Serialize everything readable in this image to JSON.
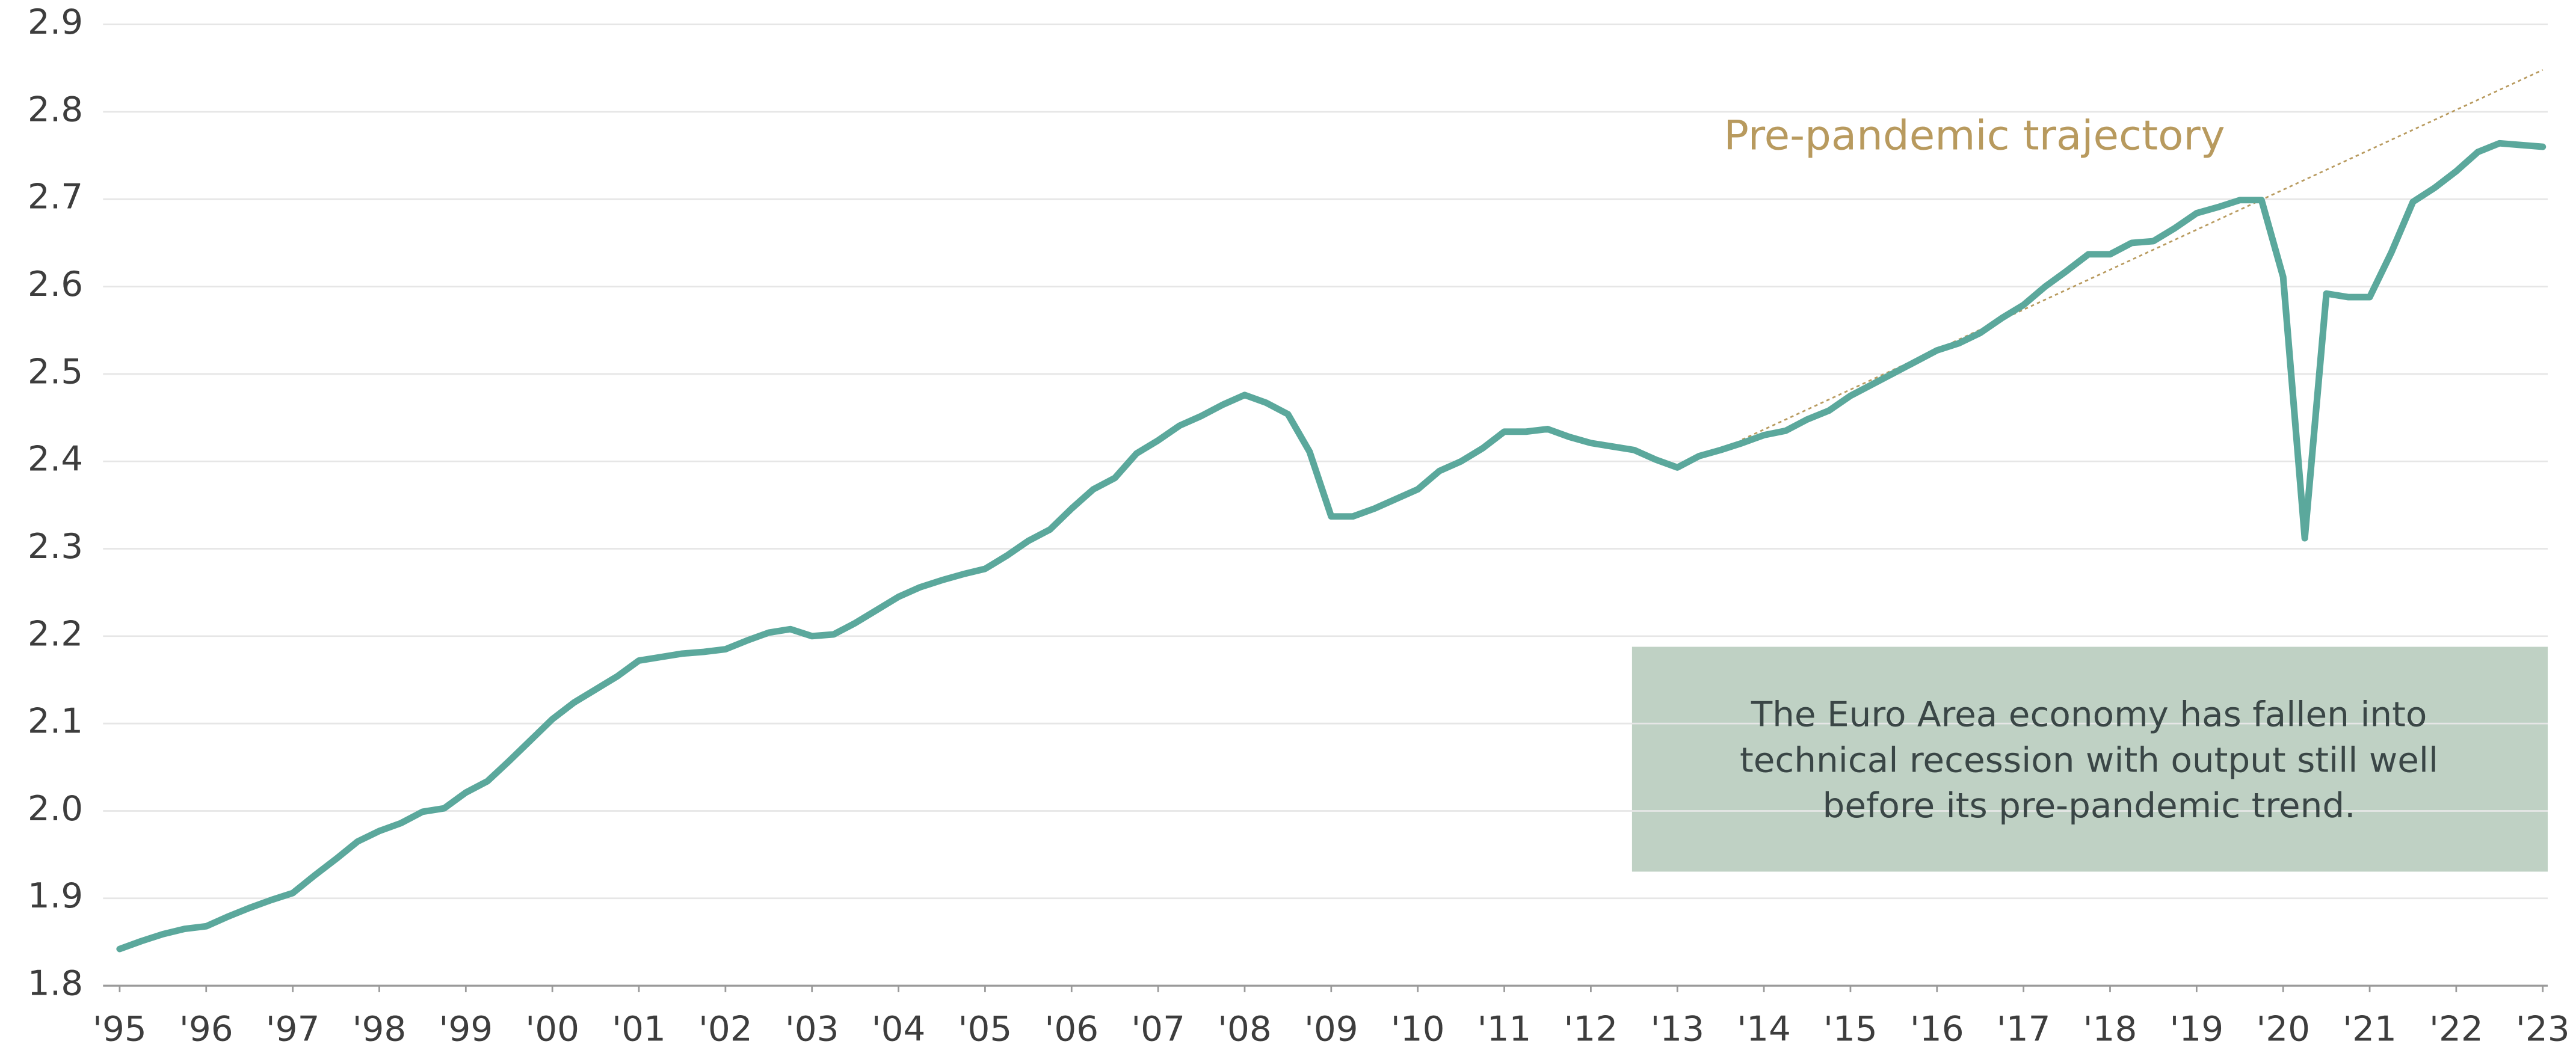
{
  "chart_data": {
    "type": "line",
    "x": [
      1995,
      1995.25,
      1995.5,
      1995.75,
      1996,
      1996.25,
      1996.5,
      1996.75,
      1997,
      1997.25,
      1997.5,
      1997.75,
      1998,
      1998.25,
      1998.5,
      1998.75,
      1999,
      1999.25,
      1999.5,
      1999.75,
      2000,
      2000.25,
      2000.5,
      2000.75,
      2001,
      2001.25,
      2001.5,
      2001.75,
      2002,
      2002.25,
      2002.5,
      2002.75,
      2003,
      2003.25,
      2003.5,
      2003.75,
      2004,
      2004.25,
      2004.5,
      2004.75,
      2005,
      2005.25,
      2005.5,
      2005.75,
      2006,
      2006.25,
      2006.5,
      2006.75,
      2007,
      2007.25,
      2007.5,
      2007.75,
      2008,
      2008.25,
      2008.5,
      2008.75,
      2009,
      2009.25,
      2009.5,
      2009.75,
      2010,
      2010.25,
      2010.5,
      2010.75,
      2011,
      2011.25,
      2011.5,
      2011.75,
      2012,
      2012.25,
      2012.5,
      2012.75,
      2013,
      2013.25,
      2013.5,
      2013.75,
      2014,
      2014.25,
      2014.5,
      2014.75,
      2015,
      2015.25,
      2015.5,
      2015.75,
      2016,
      2016.25,
      2016.5,
      2016.75,
      2017,
      2017.25,
      2017.5,
      2017.75,
      2018,
      2018.25,
      2018.5,
      2018.75,
      2019,
      2019.25,
      2019.5,
      2019.75,
      2020,
      2020.25,
      2020.5,
      2020.75,
      2021,
      2021.25,
      2021.5,
      2021.75,
      2022,
      2022.25,
      2022.5,
      2022.75,
      2023
    ],
    "series": [
      {
        "color": "#5ba89c",
        "values": [
          1.842,
          1.851,
          1.859,
          1.865,
          1.868,
          1.879,
          1.889,
          1.898,
          1.906,
          1.926,
          1.945,
          1.965,
          1.977,
          1.986,
          1.999,
          2.003,
          2.021,
          2.034,
          2.057,
          2.081,
          2.105,
          2.124,
          2.139,
          2.154,
          2.172,
          2.176,
          2.18,
          2.182,
          2.185,
          2.195,
          2.204,
          2.208,
          2.2,
          2.202,
          2.215,
          2.23,
          2.245,
          2.256,
          2.264,
          2.271,
          2.277,
          2.292,
          2.309,
          2.322,
          2.346,
          2.368,
          2.381,
          2.409,
          2.424,
          2.441,
          2.452,
          2.465,
          2.476,
          2.467,
          2.454,
          2.411,
          2.337,
          2.337,
          2.346,
          2.357,
          2.368,
          2.389,
          2.4,
          2.415,
          2.434,
          2.434,
          2.437,
          2.428,
          2.421,
          2.417,
          2.413,
          2.402,
          2.393,
          2.406,
          2.413,
          2.421,
          2.43,
          2.435,
          2.448,
          2.458,
          2.475,
          2.488,
          2.501,
          2.514,
          2.527,
          2.535,
          2.547,
          2.564,
          2.579,
          2.6,
          2.618,
          2.637,
          2.637,
          2.65,
          2.652,
          2.667,
          2.684,
          2.691,
          2.699,
          2.699,
          2.611,
          2.312,
          2.592,
          2.588,
          2.588,
          2.639,
          2.697,
          2.713,
          2.732,
          2.754,
          2.764,
          2.762,
          2.76
        ]
      }
    ],
    "trend": {
      "name": "Pre-pandemic trajectory",
      "color": "#b89a5e",
      "x": [
        2013.75,
        2023
      ],
      "values": [
        2.425,
        2.848
      ]
    },
    "annotation": [
      "The Euro Area economy has fallen into",
      "technical recession with output still well",
      "before its pre-pandemic trend."
    ],
    "xlim": [
      1995,
      2023
    ],
    "xticks": [
      {
        "value": 1995,
        "label": "'95"
      },
      {
        "value": 1996,
        "label": "'96"
      },
      {
        "value": 1997,
        "label": "'97"
      },
      {
        "value": 1998,
        "label": "'98"
      },
      {
        "value": 1999,
        "label": "'99"
      },
      {
        "value": 2000,
        "label": "'00"
      },
      {
        "value": 2001,
        "label": "'01"
      },
      {
        "value": 2002,
        "label": "'02"
      },
      {
        "value": 2003,
        "label": "'03"
      },
      {
        "value": 2004,
        "label": "'04"
      },
      {
        "value": 2005,
        "label": "'05"
      },
      {
        "value": 2006,
        "label": "'06"
      },
      {
        "value": 2007,
        "label": "'07"
      },
      {
        "value": 2008,
        "label": "'08"
      },
      {
        "value": 2009,
        "label": "'09"
      },
      {
        "value": 2010,
        "label": "'10"
      },
      {
        "value": 2011,
        "label": "'11"
      },
      {
        "value": 2012,
        "label": "'12"
      },
      {
        "value": 2013,
        "label": "'13"
      },
      {
        "value": 2014,
        "label": "'14"
      },
      {
        "value": 2015,
        "label": "'15"
      },
      {
        "value": 2016,
        "label": "'16"
      },
      {
        "value": 2017,
        "label": "'17"
      },
      {
        "value": 2018,
        "label": "'18"
      },
      {
        "value": 2019,
        "label": "'19"
      },
      {
        "value": 2020,
        "label": "'20"
      },
      {
        "value": 2021,
        "label": "'21"
      },
      {
        "value": 2022,
        "label": "'22"
      },
      {
        "value": 2023,
        "label": "'23"
      }
    ],
    "ylim": [
      1.8,
      2.9
    ],
    "yticks": [
      1.8,
      1.9,
      {
        "value": 2,
        "label": "2.0"
      },
      2.1,
      2.2,
      2.3,
      2.4,
      2.5,
      2.6,
      2.7,
      2.8,
      2.9
    ],
    "grid": true
  }
}
